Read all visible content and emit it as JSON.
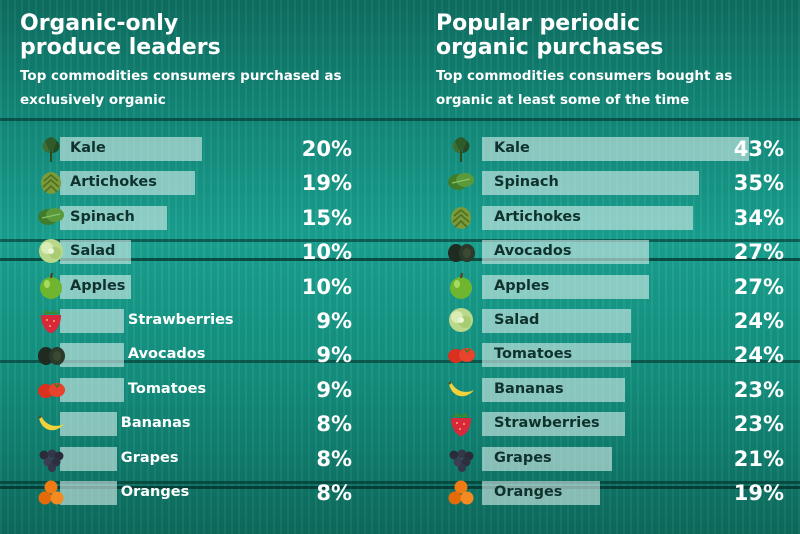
{
  "colors": {
    "background": "#13897a",
    "bar": "#d2ebe8",
    "text": "#ffffff",
    "label": "#10322d"
  },
  "chart_data": [
    {
      "type": "bar",
      "title": "Organic-only produce leaders",
      "subtitle": "Top commodities consumers purchased as exclusively organic",
      "unit": "%",
      "categories": [
        "Kale",
        "Artichokes",
        "Spinach",
        "Salad",
        "Apples",
        "Strawberries",
        "Avocados",
        "Tomatoes",
        "Bananas",
        "Grapes",
        "Oranges"
      ],
      "values": [
        20,
        19,
        15,
        10,
        10,
        9,
        9,
        9,
        8,
        8,
        8
      ],
      "value_labels": [
        "20%",
        "19%",
        "15%",
        "10%",
        "10%",
        "9%",
        "9%",
        "9%",
        "8%",
        "8%",
        "8%"
      ],
      "icons": [
        "kale-icon",
        "artichoke-icon",
        "spinach-icon",
        "salad-icon",
        "apple-icon",
        "strawberry-icon",
        "avocado-icon",
        "tomato-icon",
        "banana-icon",
        "grapes-icon",
        "orange-icon"
      ]
    },
    {
      "type": "bar",
      "title": "Popular periodic organic purchases",
      "subtitle": "Top commodities consumers bought as organic at least some of the time",
      "unit": "%",
      "categories": [
        "Kale",
        "Spinach",
        "Artichokes",
        "Avocados",
        "Apples",
        "Salad",
        "Tomatoes",
        "Bananas",
        "Strawberries",
        "Grapes",
        "Oranges"
      ],
      "values": [
        43,
        35,
        34,
        27,
        27,
        24,
        24,
        23,
        23,
        21,
        19
      ],
      "value_labels": [
        "43%",
        "35%",
        "34%",
        "27%",
        "27%",
        "24%",
        "24%",
        "23%",
        "23%",
        "21%",
        "19%"
      ],
      "icons": [
        "kale-icon",
        "spinach-icon",
        "artichoke-icon",
        "avocado-icon",
        "apple-icon",
        "salad-icon",
        "tomato-icon",
        "banana-icon",
        "strawberry-icon",
        "grapes-icon",
        "orange-icon"
      ]
    }
  ]
}
